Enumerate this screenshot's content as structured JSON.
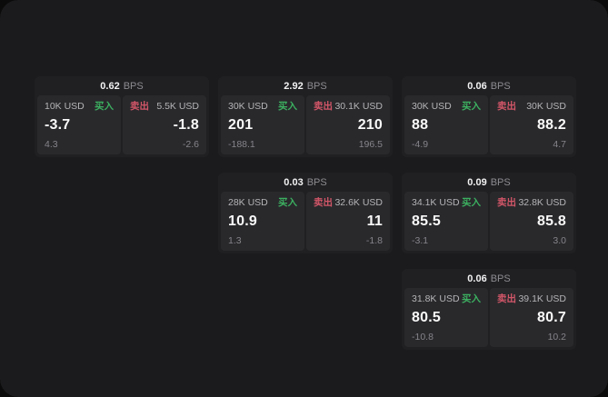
{
  "labels": {
    "buy": "买入",
    "sell": "卖出",
    "bps": "BPS"
  },
  "colors": {
    "background_outer": "#0b0b0b",
    "background_app": "#1b1b1d",
    "card": "#202023",
    "panel": "#29292c",
    "buy_accent": "#3cb060",
    "sell_accent": "#d25668",
    "value_text": "#fafafa",
    "muted_text": "#85858a"
  },
  "cards": [
    {
      "bps": "0.62",
      "buy": {
        "size": "10K USD",
        "value": "-3.7",
        "sub": "4.3"
      },
      "sell": {
        "size": "5.5K USD",
        "value": "-1.8",
        "sub": "-2.6"
      }
    },
    {
      "bps": "2.92",
      "buy": {
        "size": "30K USD",
        "value": "201",
        "sub": "-188.1"
      },
      "sell": {
        "size": "30.1K USD",
        "value": "210",
        "sub": "196.5"
      }
    },
    {
      "bps": "0.06",
      "buy": {
        "size": "30K USD",
        "value": "88",
        "sub": "-4.9"
      },
      "sell": {
        "size": "30K USD",
        "value": "88.2",
        "sub": "4.7"
      }
    },
    {
      "bps": "0.03",
      "buy": {
        "size": "28K USD",
        "value": "10.9",
        "sub": "1.3"
      },
      "sell": {
        "size": "32.6K USD",
        "value": "11",
        "sub": "-1.8"
      }
    },
    {
      "bps": "0.09",
      "buy": {
        "size": "34.1K USD",
        "value": "85.5",
        "sub": "-3.1"
      },
      "sell": {
        "size": "32.8K USD",
        "value": "85.8",
        "sub": "3.0"
      }
    },
    {
      "bps": "0.06",
      "buy": {
        "size": "31.8K USD",
        "value": "80.5",
        "sub": "-10.8"
      },
      "sell": {
        "size": "39.1K USD",
        "value": "80.7",
        "sub": "10.2"
      }
    }
  ]
}
